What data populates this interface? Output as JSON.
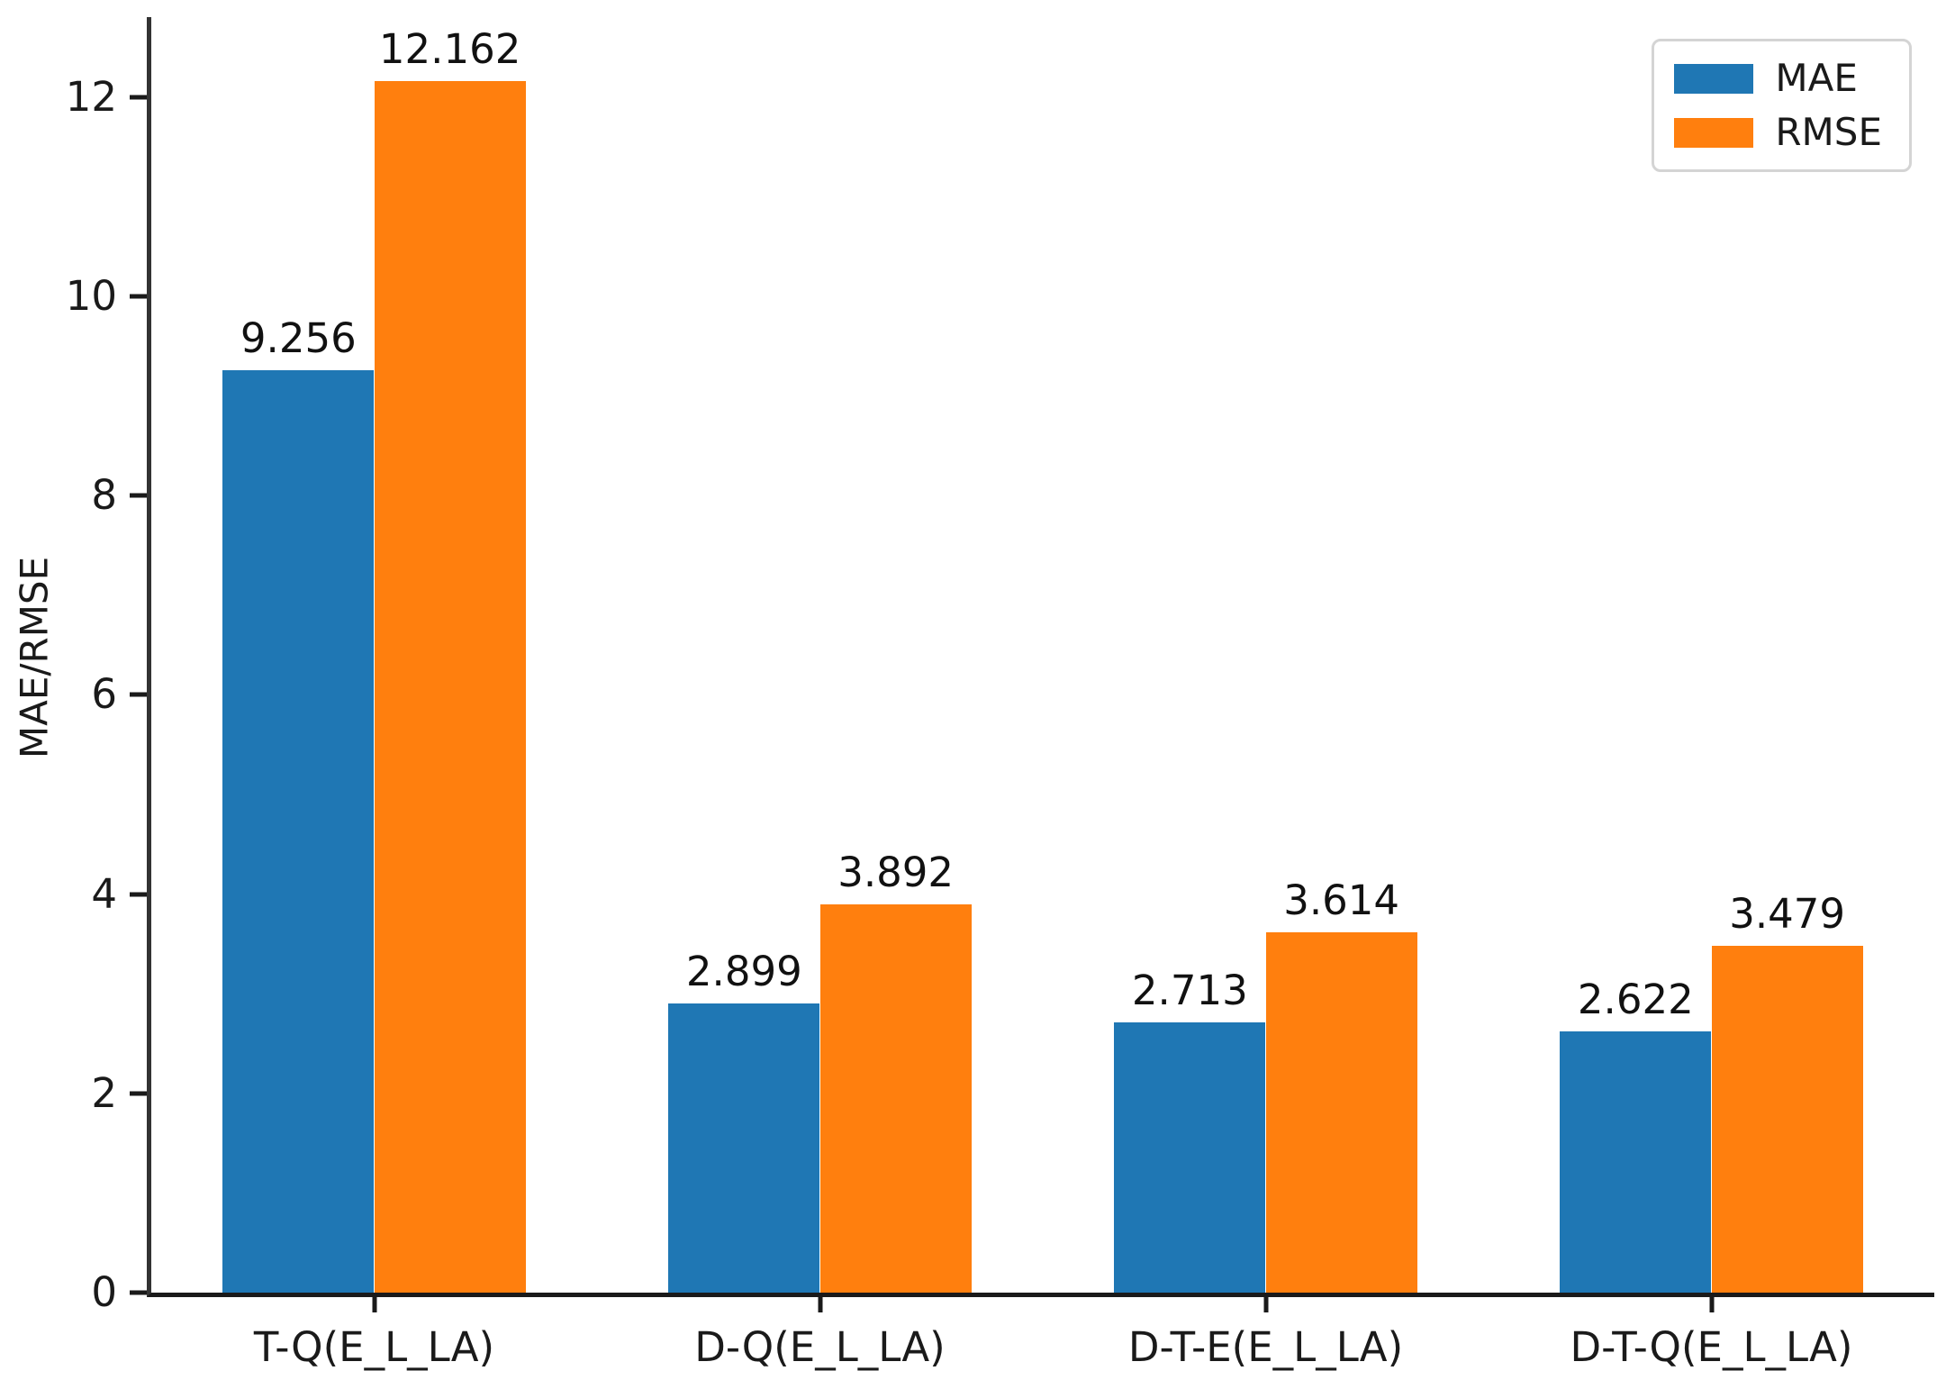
{
  "figure": {
    "background": "#ffffff",
    "axis_color": "#1a1a1a",
    "text_color": "#1a1a1a"
  },
  "chart_data": {
    "type": "bar",
    "title": "",
    "xlabel": "",
    "ylabel": "MAE/RMSE",
    "categories": [
      "T-Q(E_L_LA)",
      "D-Q(E_L_LA)",
      "D-T-E(E_L_LA)",
      "D-T-Q(E_L_LA)"
    ],
    "series": [
      {
        "name": "MAE",
        "color": "#1f77b4",
        "values": [
          9.256,
          2.899,
          2.713,
          2.622
        ],
        "labels": [
          "9.256",
          "2.899",
          "2.713",
          "2.622"
        ]
      },
      {
        "name": "RMSE",
        "color": "#ff7f0e",
        "values": [
          12.162,
          3.892,
          3.614,
          3.479
        ],
        "labels": [
          "12.162",
          "3.892",
          "3.614",
          "3.479"
        ]
      }
    ],
    "y_ticks": [
      0,
      2,
      4,
      6,
      8,
      10,
      12
    ],
    "ylim": [
      0,
      12.8
    ],
    "grid": false,
    "legend_position": "upper right",
    "legend_labels": [
      "MAE",
      "RMSE"
    ]
  }
}
